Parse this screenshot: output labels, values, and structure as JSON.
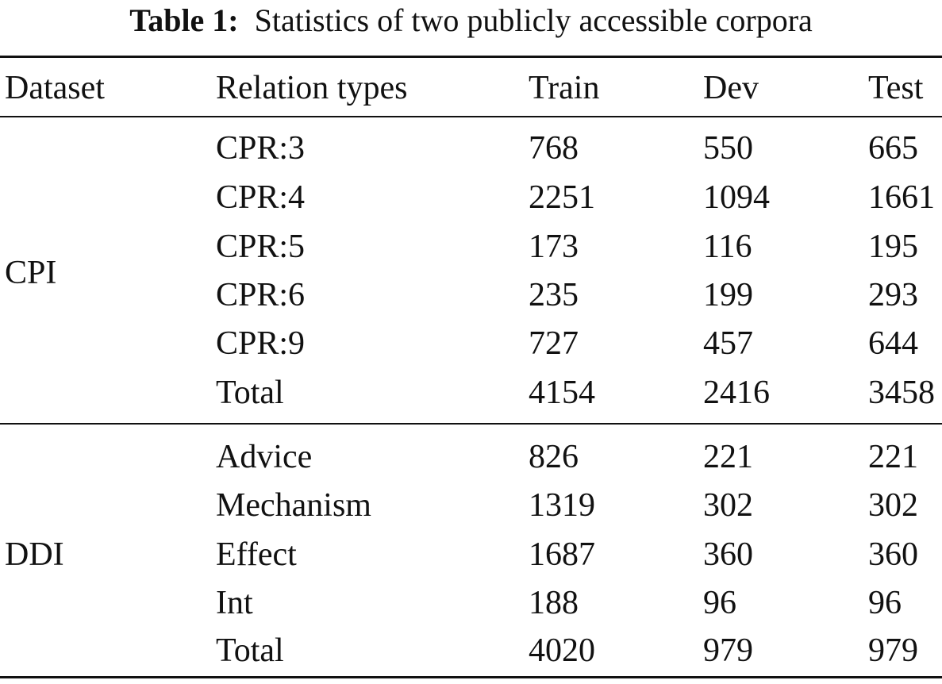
{
  "caption": {
    "label": "Table 1:",
    "text": "Statistics of two publicly accessible corpora"
  },
  "table": {
    "headers": [
      "Dataset",
      "Relation types",
      "Train",
      "Dev",
      "Test"
    ],
    "groups": [
      {
        "dataset": "CPI",
        "rows": [
          [
            "CPR:3",
            "768",
            "550",
            "665"
          ],
          [
            "CPR:4",
            "2251",
            "1094",
            "1661"
          ],
          [
            "CPR:5",
            "173",
            "116",
            "195"
          ],
          [
            "CPR:6",
            "235",
            "199",
            "293"
          ],
          [
            "CPR:9",
            "727",
            "457",
            "644"
          ],
          [
            "Total",
            "4154",
            "2416",
            "3458"
          ]
        ]
      },
      {
        "dataset": "DDI",
        "rows": [
          [
            "Advice",
            "826",
            "221",
            "221"
          ],
          [
            "Mechanism",
            "1319",
            "302",
            "302"
          ],
          [
            "Effect",
            "1687",
            "360",
            "360"
          ],
          [
            "Int",
            "188",
            "96",
            "96"
          ],
          [
            "Total",
            "4020",
            "979",
            "979"
          ]
        ]
      }
    ]
  }
}
